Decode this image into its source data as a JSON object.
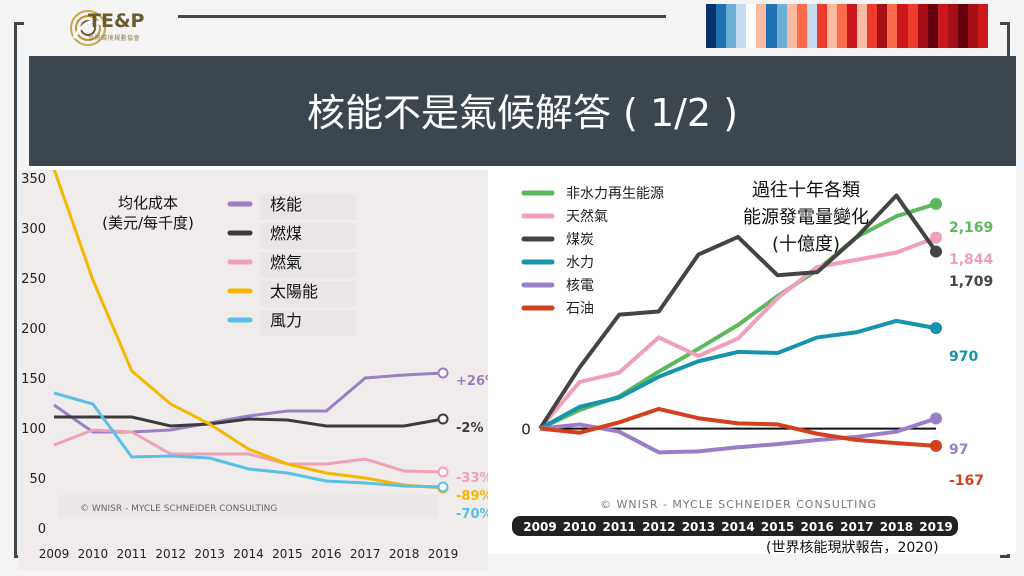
{
  "header": {
    "logo_text": "TE&P",
    "logo_sub": "台灣環境規劃協會",
    "title": "核能不是氣候解答 ( 1/2 )",
    "stripe_colors": [
      "#08306b",
      "#2171b5",
      "#6baed6",
      "#c6dbef",
      "#ffffff",
      "#fcbba1",
      "#2171b5",
      "#6baed6",
      "#fcbba1",
      "#fb6a4a",
      "#c6dbef",
      "#ef3b2c",
      "#fcbba1",
      "#fb6a4a",
      "#cb181d",
      "#fcbba1",
      "#ef3b2c",
      "#a50f15",
      "#fb6a4a",
      "#cb181d",
      "#ef3b2c",
      "#a50f15",
      "#67000d",
      "#cb181d",
      "#a50f15",
      "#67000d",
      "#a50f15",
      "#cb181d"
    ]
  },
  "chart_data": [
    {
      "type": "line",
      "legend_title": "均化成本\n(美元/每千度)",
      "x": [
        2009,
        2010,
        2011,
        2012,
        2013,
        2014,
        2015,
        2016,
        2017,
        2018,
        2019
      ],
      "ylim": [
        0,
        350
      ],
      "yticks": [
        0,
        50,
        100,
        150,
        200,
        250,
        300,
        350
      ],
      "series": [
        {
          "name": "核能",
          "color": "#9b7fc6",
          "values": [
            123,
            96,
            96,
            98,
            105,
            112,
            117,
            117,
            150,
            153,
            155
          ],
          "end_label": "+26%"
        },
        {
          "name": "燃煤",
          "color": "#3b3b3b",
          "values": [
            111,
            111,
            111,
            102,
            104,
            109,
            108,
            102,
            102,
            102,
            109
          ],
          "end_label": "-2%"
        },
        {
          "name": "燃氣",
          "color": "#f0a0b8",
          "values": [
            83,
            98,
            96,
            74,
            74,
            74,
            64,
            64,
            69,
            57,
            56
          ],
          "end_label": "-33%"
        },
        {
          "name": "太陽能",
          "color": "#f5b800",
          "values": [
            359,
            248,
            157,
            124,
            104,
            79,
            64,
            55,
            50,
            43,
            40
          ],
          "end_label": "-89%"
        },
        {
          "name": "風力",
          "color": "#5bc0e8",
          "values": [
            135,
            124,
            71,
            72,
            70,
            59,
            55,
            47,
            45,
            42,
            41
          ],
          "end_label": "-70%"
        }
      ],
      "watermark": "© WNISR - MYCLE SCHNEIDER CONSULTING"
    },
    {
      "type": "line",
      "title": "過往十年各類\n能源發電量變化\n(十億度)",
      "x": [
        2009,
        2010,
        2011,
        2012,
        2013,
        2014,
        2015,
        2016,
        2017,
        2018,
        2019
      ],
      "zero_label": "0",
      "ylim": [
        -400,
        2400
      ],
      "series": [
        {
          "name": "非水力再生能源",
          "color": "#5cb85c",
          "values": [
            0,
            180,
            310,
            550,
            770,
            1000,
            1280,
            1530,
            1850,
            2050,
            2169
          ],
          "end_label": "2,169"
        },
        {
          "name": "天然氣",
          "color": "#f0a0b8",
          "values": [
            0,
            450,
            540,
            880,
            700,
            870,
            1260,
            1560,
            1630,
            1700,
            1844
          ],
          "end_label": "1,844"
        },
        {
          "name": "煤炭",
          "color": "#444444",
          "values": [
            0,
            590,
            1100,
            1130,
            1680,
            1850,
            1480,
            1510,
            1850,
            2250,
            1709
          ],
          "end_label": "1,709"
        },
        {
          "name": "水力",
          "color": "#1793ad",
          "values": [
            0,
            210,
            300,
            500,
            650,
            740,
            730,
            880,
            930,
            1040,
            970
          ],
          "end_label": "970"
        },
        {
          "name": "核電",
          "color": "#9b7fc6",
          "values": [
            0,
            40,
            -30,
            -230,
            -220,
            -180,
            -150,
            -110,
            -80,
            -30,
            97
          ],
          "end_label": "97"
        },
        {
          "name": "石油",
          "color": "#d43f1d",
          "values": [
            0,
            -40,
            60,
            190,
            100,
            50,
            40,
            -50,
            -110,
            -140,
            -167
          ],
          "end_label": "-167"
        }
      ],
      "watermark": "© WNISR - MYCLE SCHNEIDER CONSULTING"
    }
  ],
  "footnote": "(世界核能現狀報告，2020)"
}
